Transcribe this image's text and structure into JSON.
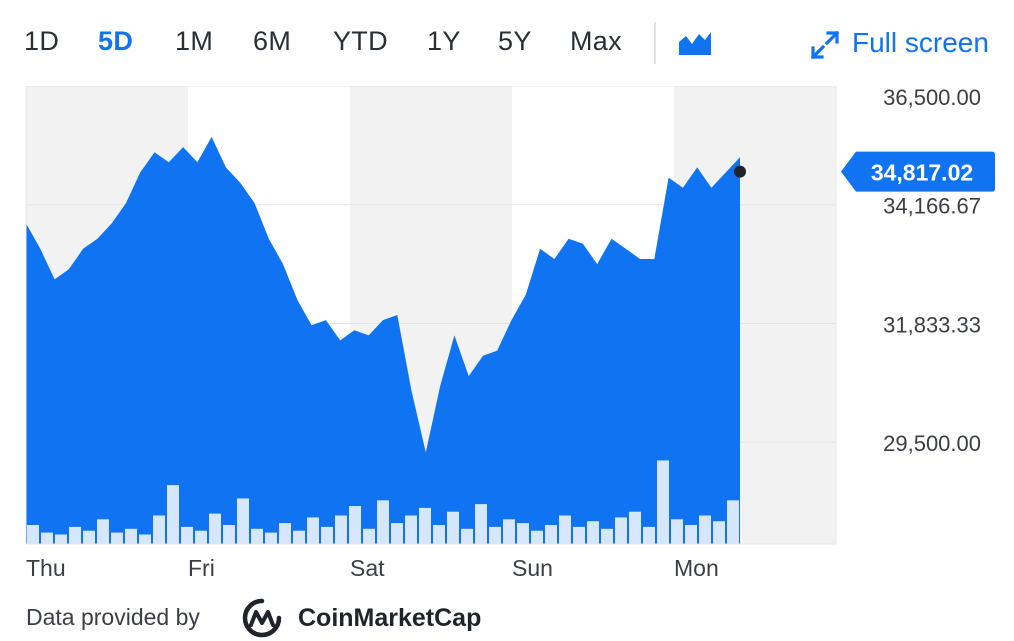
{
  "toolbar": {
    "ranges": [
      "1D",
      "5D",
      "1M",
      "6M",
      "YTD",
      "1Y",
      "5Y",
      "Max"
    ],
    "active_range": "5D",
    "chart_type_icon": "area-chart-icon",
    "fullscreen_icon": "expand-icon",
    "fullscreen_label": "Full screen"
  },
  "colors": {
    "area": "#0f73f2",
    "accent": "#0f73f2",
    "band_shade": "#f2f2f2",
    "grid": "#e4e4e4",
    "volume": "#d6e7fd"
  },
  "footer": {
    "provided_by": "Data provided by",
    "provider_icon": "coinmarketcap-logo-icon",
    "provider_name": "CoinMarketCap"
  },
  "chart_data": {
    "type": "area",
    "x_labels": [
      "Thu",
      "Fri",
      "Sat",
      "Sun",
      "Mon"
    ],
    "y_ticks": [
      36500.0,
      34166.67,
      31833.33,
      29500.0
    ],
    "y_tick_labels": [
      "36,500.00",
      "34,166.67",
      "31,833.33",
      "29,500.00"
    ],
    "ylim": [
      27500,
      36500
    ],
    "current_value": 34817.02,
    "current_value_label": "34,817.02",
    "grid": true,
    "series": [
      {
        "values": [
          33800,
          33300,
          32700,
          32900,
          33300,
          33500,
          33800,
          34200,
          34800,
          35200,
          35000,
          35300,
          35000,
          35500,
          34900,
          34600,
          34200,
          33500,
          33000,
          32300,
          31800,
          31900,
          31500,
          31700,
          31600,
          31900,
          32000,
          30500,
          29300,
          30600,
          31600,
          30800,
          31200,
          31300,
          31900,
          32400,
          33300,
          33100,
          33500,
          33400,
          33000,
          33500,
          33300,
          33100,
          33100,
          34700,
          34500,
          34900,
          34500,
          34800,
          35100
        ]
      }
    ],
    "volume": [
      0.2,
      0.12,
      0.1,
      0.18,
      0.14,
      0.26,
      0.12,
      0.16,
      0.1,
      0.3,
      0.62,
      0.18,
      0.14,
      0.32,
      0.2,
      0.48,
      0.16,
      0.12,
      0.22,
      0.14,
      0.28,
      0.18,
      0.3,
      0.4,
      0.16,
      0.46,
      0.22,
      0.3,
      0.38,
      0.2,
      0.34,
      0.16,
      0.42,
      0.18,
      0.26,
      0.22,
      0.14,
      0.2,
      0.3,
      0.18,
      0.24,
      0.16,
      0.28,
      0.34,
      0.18,
      0.88,
      0.26,
      0.2,
      0.3,
      0.24,
      0.46
    ]
  }
}
